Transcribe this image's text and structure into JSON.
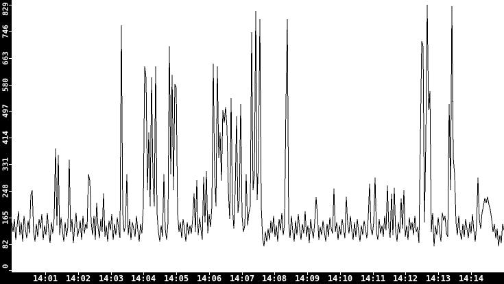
{
  "colors": {
    "axis_background": "#000000",
    "axis_text": "#ffffff",
    "plot_background": "#ffffff",
    "line": "#000000"
  },
  "y_axis": {
    "tick_labels": [
      "829",
      "746",
      "663",
      "580",
      "497",
      "414",
      "331",
      "248",
      "165",
      "82",
      "0"
    ],
    "min": 0,
    "max": 829
  },
  "x_axis": {
    "tick_labels": [
      "14:01",
      "14:02",
      "14:03",
      "14:04",
      "14:05",
      "14:06",
      "14:07",
      "14:08",
      "14:09",
      "14:10",
      "14:11",
      "14:12",
      "14:13",
      "14:14"
    ]
  },
  "chart_data": {
    "type": "line",
    "title": "",
    "xlabel": "",
    "ylabel": "",
    "x_range": [
      "14:00",
      "14:15"
    ],
    "ylim": [
      0,
      829
    ],
    "y_ticks": [
      0,
      82,
      165,
      248,
      331,
      414,
      497,
      580,
      663,
      746,
      829
    ],
    "x_tick_labels": [
      "14:01",
      "14:02",
      "14:03",
      "14:04",
      "14:05",
      "14:06",
      "14:07",
      "14:08",
      "14:09",
      "14:10",
      "14:11",
      "14:12",
      "14:13",
      "14:14"
    ],
    "grid": false,
    "legend": false,
    "sample_interval_seconds": 2.5,
    "values": [
      150,
      120,
      160,
      95,
      140,
      185,
      110,
      150,
      90,
      170,
      130,
      100,
      155,
      115,
      235,
      250,
      120,
      90,
      145,
      105,
      160,
      130,
      175,
      95,
      140,
      110,
      180,
      125,
      85,
      150,
      115,
      165,
      380,
      140,
      360,
      110,
      165,
      125,
      90,
      150,
      105,
      135,
      345,
      120,
      160,
      85,
      140,
      180,
      105,
      125,
      155,
      95,
      170,
      115,
      145,
      130,
      300,
      280,
      150,
      110,
      170,
      95,
      210,
      135,
      100,
      160,
      120,
      240,
      105,
      140,
      90,
      155,
      125,
      175,
      95,
      145,
      110,
      165,
      130,
      100,
      765,
      180,
      120,
      140,
      300,
      110,
      160,
      95,
      150,
      130,
      105,
      170,
      125,
      90,
      145,
      115,
      200,
      637,
      600,
      250,
      430,
      200,
      602,
      300,
      200,
      637,
      180,
      120,
      90,
      140,
      105,
      300,
      130,
      95,
      150,
      700,
      300,
      610,
      250,
      581,
      570,
      180,
      120,
      150,
      100,
      160,
      130,
      90,
      150,
      110,
      140,
      115,
      160,
      240,
      120,
      282,
      110,
      165,
      130,
      95,
      292,
      150,
      310,
      115,
      175,
      135,
      200,
      645,
      300,
      200,
      637,
      350,
      430,
      280,
      500,
      460,
      510,
      445,
      250,
      160,
      538,
      200,
      130,
      250,
      481,
      180,
      220,
      519,
      170,
      120,
      140,
      300,
      140,
      180,
      200,
      744,
      250,
      300,
      810,
      220,
      350,
      784,
      200,
      100,
      75,
      120,
      90,
      130,
      95,
      155,
      115,
      170,
      105,
      140,
      90,
      160,
      125,
      180,
      110,
      145,
      517,
      784,
      150,
      100,
      170,
      120,
      90,
      155,
      110,
      175,
      130,
      95,
      145,
      115,
      185,
      105,
      140,
      85,
      160,
      125,
      100,
      150,
      229,
      170,
      95,
      135,
      110,
      155,
      120,
      90,
      145,
      105,
      165,
      130,
      115,
      255,
      120,
      150,
      95,
      140,
      110,
      160,
      130,
      100,
      230,
      145,
      115,
      170,
      125,
      95,
      150,
      105,
      160,
      120,
      90,
      140,
      110,
      155,
      130,
      100,
      165,
      270,
      130,
      110,
      150,
      290,
      120,
      95,
      160,
      115,
      140,
      105,
      170,
      125,
      265,
      135,
      100,
      239,
      110,
      257,
      120,
      90,
      150,
      115,
      224,
      130,
      250,
      105,
      140,
      95,
      165,
      125,
      150,
      110,
      170,
      120,
      135,
      85,
      400,
      716,
      699,
      150,
      400,
      829,
      500,
      560,
      120,
      180,
      75,
      140,
      110,
      165,
      125,
      90,
      180,
      155,
      170,
      115,
      105,
      519,
      250,
      825,
      350,
      300,
      150,
      110,
      170,
      120,
      95,
      145,
      105,
      160,
      130,
      100,
      150,
      115,
      175,
      125,
      90,
      140,
      290,
      160,
      130,
      180,
      200,
      225,
      210,
      230,
      205,
      190,
      160,
      120,
      145,
      100,
      130,
      75,
      110,
      85,
      145,
      125
    ],
    "peaks": [
      {
        "time": "14:03:20",
        "value": 765
      },
      {
        "time": "14:04:05",
        "value": 637
      },
      {
        "time": "14:04:20",
        "value": 602
      },
      {
        "time": "14:04:27",
        "value": 637
      },
      {
        "time": "14:04:48",
        "value": 700
      },
      {
        "time": "14:04:57",
        "value": 610
      },
      {
        "time": "14:05:02",
        "value": 581
      },
      {
        "time": "14:06:08",
        "value": 645
      },
      {
        "time": "14:06:16",
        "value": 637
      },
      {
        "time": "14:06:43",
        "value": 538
      },
      {
        "time": "14:07:18",
        "value": 744
      },
      {
        "time": "14:07:26",
        "value": 810
      },
      {
        "time": "14:07:34",
        "value": 784
      },
      {
        "time": "14:08:24",
        "value": 784
      },
      {
        "time": "14:12:38",
        "value": 716
      },
      {
        "time": "14:12:40",
        "value": 829
      },
      {
        "time": "14:13:25",
        "value": 825
      }
    ]
  }
}
